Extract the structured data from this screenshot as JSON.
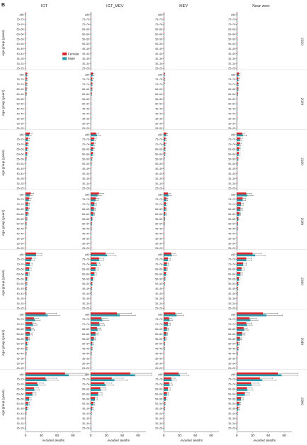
{
  "figure": {
    "panel_label": "B",
    "legend": [
      {
        "label": "Female",
        "color": "#d7282e"
      },
      {
        "label": "Male",
        "color": "#2a98a8"
      }
    ],
    "y_axis_label": "Age group (years)",
    "x_axis_label": "Avoided deaths",
    "x_ticks": [
      "0",
      "30",
      "60",
      "90"
    ],
    "colors": {
      "female": "#d7282e",
      "male": "#2a98a8",
      "error": "#333333"
    }
  },
  "chart_data": {
    "type": "bar",
    "orientation": "horizontal",
    "scenarios": [
      "IGT",
      "IGT_MEV",
      "MEV",
      "Near zero"
    ],
    "years": [
      "2020",
      "2025",
      "2030",
      "2035",
      "2040",
      "2045",
      "2050"
    ],
    "age_groups": [
      "≥80",
      "75–79",
      "70–74",
      "65–69",
      "60–64",
      "55–59",
      "50–54",
      "45–49",
      "40–44",
      "35–39",
      "30–34",
      "25–29"
    ],
    "series_names": [
      "Female",
      "Male"
    ],
    "xlim": [
      0,
      105
    ],
    "values": {
      "IGT": {
        "2020": {
          "Female": [
            0.5,
            0.4,
            0.3,
            0.3,
            0.2,
            0.1,
            0.1,
            0.1,
            0.1,
            0,
            0,
            0
          ],
          "Male": [
            0.5,
            0.4,
            0.3,
            0.2,
            0.2,
            0.1,
            0.1,
            0.1,
            0.1,
            0,
            0,
            0
          ]
        },
        "2025": {
          "Female": [
            3,
            2.5,
            2,
            1.8,
            1.5,
            0.8,
            0.5,
            0.3,
            0.2,
            0.1,
            0,
            0
          ],
          "Male": [
            2.5,
            2,
            1.8,
            1.5,
            1.2,
            0.7,
            0.4,
            0.3,
            0.2,
            0.1,
            0,
            0
          ]
        },
        "2030": {
          "Female": [
            8,
            5,
            4,
            3.5,
            3,
            1.5,
            0.8,
            0.5,
            0.3,
            0.2,
            0.1,
            0
          ],
          "Male": [
            7,
            4.5,
            3.5,
            3,
            2.5,
            1.2,
            0.7,
            0.4,
            0.3,
            0.2,
            0.1,
            0
          ]
        },
        "2035": {
          "Female": [
            10,
            7,
            5,
            5,
            4,
            2,
            1.5,
            1,
            0.5,
            0.3,
            0.2,
            0.1
          ],
          "Male": [
            8,
            6,
            4.5,
            4,
            3.5,
            2,
            1.2,
            0.8,
            0.5,
            0.3,
            0.2,
            0.1
          ]
        },
        "2040": {
          "Female": [
            20,
            12,
            8,
            7,
            5,
            3,
            2,
            1.5,
            1,
            0.5,
            0.3,
            0.2
          ],
          "Male": [
            20,
            11,
            8,
            7,
            5,
            3,
            2,
            1.5,
            1,
            0.5,
            0.3,
            0.2
          ]
        },
        "2045": {
          "Female": [
            38,
            16,
            13,
            10,
            8,
            5,
            3,
            2,
            1,
            0.5,
            0.3,
            0.2
          ],
          "Male": [
            42,
            18,
            14,
            11,
            8,
            5,
            3,
            2,
            1,
            0.5,
            0.3,
            0.2
          ]
        },
        "2050": {
          "Female": [
            75,
            38,
            22,
            16,
            13,
            7,
            5,
            3,
            1,
            0.5,
            0.3,
            0.2
          ],
          "Male": [
            82,
            40,
            24,
            17,
            13,
            7,
            5,
            3,
            1,
            0.5,
            0.3,
            0.2
          ]
        }
      },
      "IGT_MEV": {
        "2020": {
          "Female": [
            0.8,
            0.6,
            0.5,
            0.4,
            0.3,
            0.2,
            0.1,
            0.1,
            0.1,
            0,
            0,
            0
          ],
          "Male": [
            0.7,
            0.5,
            0.4,
            0.3,
            0.3,
            0.2,
            0.1,
            0.1,
            0.1,
            0,
            0,
            0
          ]
        },
        "2025": {
          "Female": [
            4,
            3,
            2.5,
            2,
            1.5,
            0.8,
            0.5,
            0.3,
            0.2,
            0.1,
            0,
            0
          ],
          "Male": [
            3.5,
            2.5,
            2,
            1.8,
            1.2,
            0.7,
            0.4,
            0.3,
            0.2,
            0.1,
            0,
            0
          ]
        },
        "2030": {
          "Female": [
            10,
            7,
            6,
            5,
            4,
            2,
            1,
            0.5,
            0.3,
            0.2,
            0.1,
            0
          ],
          "Male": [
            12,
            6,
            5,
            4,
            3.5,
            1.8,
            1,
            0.5,
            0.3,
            0.2,
            0.1,
            0
          ]
        },
        "2035": {
          "Female": [
            16,
            10,
            7,
            6,
            5,
            2.5,
            1.5,
            1,
            0.5,
            0.3,
            0.2,
            0.1
          ],
          "Male": [
            13,
            9,
            7,
            6,
            5,
            2.5,
            1.5,
            1,
            0.5,
            0.3,
            0.2,
            0.1
          ]
        },
        "2040": {
          "Female": [
            28,
            16,
            11,
            9,
            7,
            4,
            2.5,
            1.5,
            1,
            0.5,
            0.3,
            0.2
          ],
          "Male": [
            31,
            16,
            12,
            9,
            7,
            4,
            2.5,
            1.5,
            1,
            0.5,
            0.3,
            0.2
          ]
        },
        "2045": {
          "Female": [
            50,
            20,
            16,
            12,
            9,
            6,
            3,
            2,
            1,
            0.5,
            0.3,
            0.2
          ],
          "Male": [
            55,
            22,
            17,
            13,
            9,
            6,
            3,
            2,
            1,
            0.5,
            0.3,
            0.2
          ]
        },
        "2050": {
          "Female": [
            75,
            40,
            26,
            18,
            14,
            8,
            5,
            3,
            1,
            0.5,
            0.3,
            0.2
          ],
          "Male": [
            84,
            45,
            28,
            19,
            14,
            8,
            5,
            3,
            1,
            0.5,
            0.3,
            0.2
          ]
        }
      },
      "MEV": {
        "2020": {
          "Female": [
            0.3,
            0.2,
            0.2,
            0.1,
            0.1,
            0.1,
            0,
            0,
            0,
            0,
            0,
            0
          ],
          "Male": [
            0.3,
            0.2,
            0.2,
            0.1,
            0.1,
            0.1,
            0,
            0,
            0,
            0,
            0,
            0
          ]
        },
        "2025": {
          "Female": [
            1.5,
            1.2,
            1,
            0.8,
            0.6,
            0.3,
            0.2,
            0.1,
            0.1,
            0,
            0,
            0
          ],
          "Male": [
            1.2,
            1,
            0.8,
            0.7,
            0.5,
            0.3,
            0.2,
            0.1,
            0.1,
            0,
            0,
            0
          ]
        },
        "2030": {
          "Female": [
            5,
            3.5,
            3,
            2.5,
            2,
            1,
            0.5,
            0.3,
            0.2,
            0.1,
            0,
            0
          ],
          "Male": [
            4.5,
            3,
            2.5,
            2,
            1.8,
            0.9,
            0.5,
            0.3,
            0.2,
            0.1,
            0,
            0
          ]
        },
        "2035": {
          "Female": [
            8,
            5,
            4,
            3.5,
            3,
            1.5,
            1,
            0.5,
            0.3,
            0.2,
            0.1,
            0
          ],
          "Male": [
            9,
            5,
            4,
            3.5,
            3,
            1.5,
            1,
            0.5,
            0.3,
            0.2,
            0.1,
            0
          ]
        },
        "2040": {
          "Female": [
            14,
            8,
            6,
            5,
            4,
            2,
            1.2,
            0.8,
            0.5,
            0.3,
            0.2,
            0.1
          ],
          "Male": [
            15,
            8,
            6,
            5,
            4,
            2,
            1.2,
            0.8,
            0.5,
            0.3,
            0.2,
            0.1
          ]
        },
        "2045": {
          "Female": [
            22,
            10,
            8,
            6,
            5,
            3,
            1.5,
            1,
            0.5,
            0.3,
            0.2,
            0.1
          ],
          "Male": [
            24,
            11,
            8,
            6,
            5,
            3,
            1.5,
            1,
            0.5,
            0.3,
            0.2,
            0.1
          ]
        },
        "2050": {
          "Female": [
            28,
            14,
            10,
            8,
            6,
            4,
            2,
            1.5,
            0.5,
            0.3,
            0.2,
            0.1
          ],
          "Male": [
            31,
            15,
            11,
            8,
            6,
            4,
            2,
            1.5,
            0.5,
            0.3,
            0.2,
            0.1
          ]
        }
      },
      "Near zero": {
        "2020": {
          "Female": [
            0.8,
            0.6,
            0.5,
            0.4,
            0.3,
            0.2,
            0.1,
            0.1,
            0.1,
            0,
            0,
            0
          ],
          "Male": [
            0.7,
            0.5,
            0.4,
            0.3,
            0.3,
            0.2,
            0.1,
            0.1,
            0.1,
            0,
            0,
            0
          ]
        },
        "2025": {
          "Female": [
            4,
            3,
            2.5,
            2,
            1.5,
            0.8,
            0.5,
            0.3,
            0.2,
            0.1,
            0,
            0
          ],
          "Male": [
            3.5,
            2.5,
            2,
            1.8,
            1.2,
            0.7,
            0.4,
            0.3,
            0.2,
            0.1,
            0,
            0
          ]
        },
        "2030": {
          "Female": [
            10,
            7,
            6,
            5,
            4,
            2,
            1,
            0.5,
            0.3,
            0.2,
            0.1,
            0
          ],
          "Male": [
            12,
            6,
            5,
            4,
            3.5,
            1.8,
            1,
            0.5,
            0.3,
            0.2,
            0.1,
            0
          ]
        },
        "2035": {
          "Female": [
            18,
            11,
            8,
            7,
            5,
            2.5,
            1.5,
            1,
            0.5,
            0.3,
            0.2,
            0.1
          ],
          "Male": [
            20,
            11,
            8,
            7,
            5,
            2.5,
            1.5,
            1,
            0.5,
            0.3,
            0.2,
            0.1
          ]
        },
        "2040": {
          "Female": [
            30,
            18,
            12,
            9,
            7,
            4,
            2.5,
            1.5,
            1,
            0.5,
            0.3,
            0.2
          ],
          "Male": [
            35,
            18,
            12,
            9,
            7,
            4,
            2.5,
            1.5,
            1,
            0.5,
            0.3,
            0.2
          ]
        },
        "2045": {
          "Female": [
            50,
            24,
            18,
            13,
            10,
            6,
            3,
            2,
            1,
            0.5,
            0.3,
            0.2
          ],
          "Male": [
            56,
            26,
            19,
            14,
            10,
            6,
            3,
            2,
            1,
            0.5,
            0.3,
            0.2
          ]
        },
        "2050": {
          "Female": [
            78,
            44,
            27,
            19,
            15,
            8,
            5,
            3,
            1,
            0.5,
            0.3,
            0.2
          ],
          "Male": [
            85,
            48,
            28,
            20,
            15,
            8,
            5,
            3,
            1,
            0.5,
            0.3,
            0.2
          ]
        }
      }
    },
    "error_ratio": 1.55
  }
}
